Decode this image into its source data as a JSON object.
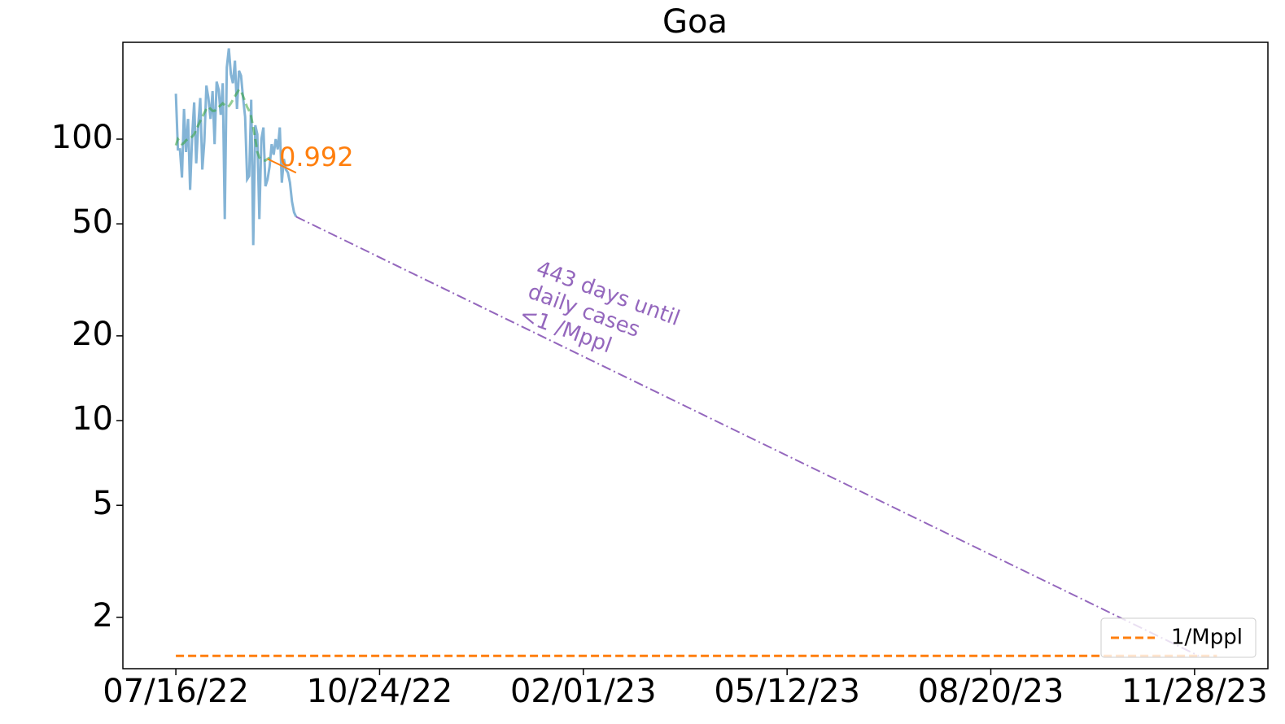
{
  "chart_data": {
    "type": "line",
    "title": "Goa",
    "log_y": true,
    "legend": "lower right",
    "x": [
      "2022-07-16",
      "2022-07-17",
      "2022-07-18",
      "2022-07-19",
      "2022-07-20",
      "2022-07-21",
      "2022-07-22",
      "2022-07-23",
      "2022-07-24",
      "2022-07-25",
      "2022-07-26",
      "2022-07-27",
      "2022-07-28",
      "2022-07-29",
      "2022-07-30",
      "2022-07-31",
      "2022-08-01",
      "2022-08-02",
      "2022-08-03",
      "2022-08-04",
      "2022-08-05",
      "2022-08-06",
      "2022-08-07",
      "2022-08-08",
      "2022-08-09",
      "2022-08-10",
      "2022-08-11",
      "2022-08-12",
      "2022-08-13",
      "2022-08-14",
      "2022-08-15",
      "2022-08-16",
      "2022-08-17",
      "2022-08-18",
      "2022-08-19",
      "2022-08-20",
      "2022-08-21",
      "2022-08-22",
      "2022-08-23",
      "2022-08-24",
      "2022-08-25",
      "2022-08-26",
      "2022-08-27",
      "2022-08-28",
      "2022-08-29",
      "2022-08-30",
      "2022-08-31",
      "2022-09-01",
      "2022-09-02",
      "2022-09-03",
      "2022-09-04",
      "2022-09-05",
      "2022-09-06",
      "2022-09-07",
      "2022-09-08",
      "2022-09-09",
      "2022-09-10",
      "2022-09-11",
      "2022-09-12",
      "2022-09-13"
    ],
    "series": [
      {
        "color": "#1f77b4",
        "opacity": 0.55,
        "style": "solid",
        "width": 3,
        "values": [
          145,
          92,
          92,
          73,
          128,
          90,
          118,
          66,
          102,
          135,
          82,
          112,
          140,
          78,
          98,
          155,
          140,
          118,
          148,
          96,
          160,
          150,
          122,
          158,
          52,
          180,
          210,
          170,
          158,
          190,
          128,
          175,
          168,
          140,
          120,
          72,
          74,
          138,
          42,
          112,
          104,
          52,
          100,
          110,
          68,
          72,
          80,
          96,
          88,
          100,
          92,
          110,
          70,
          85,
          78,
          76,
          70,
          60,
          55,
          53
        ]
      },
      {
        "color": "#2ca02c",
        "opacity": 0.5,
        "style": "dashed",
        "width": 3,
        "values": [
          95,
          100,
          98,
          96,
          97,
          99,
          100,
          101,
          102,
          104,
          108,
          112,
          116,
          120,
          124,
          128,
          130,
          128,
          126,
          126,
          128,
          130,
          132,
          134,
          132,
          130,
          131,
          134,
          138,
          142,
          146,
          150,
          148,
          142,
          136,
          130,
          126,
          120,
          110,
          100,
          90,
          86,
          85,
          84,
          84,
          85,
          86,
          null,
          null,
          null,
          null,
          null,
          null,
          null,
          null,
          null,
          null,
          null,
          null,
          null
        ]
      },
      {
        "color": "#ff7f0e",
        "opacity": 1,
        "style": "solid",
        "width": 2,
        "x": [
          "2022-08-30",
          "2022-09-13"
        ],
        "values": [
          85,
          76
        ]
      },
      {
        "color": "#9467bd",
        "opacity": 1,
        "style": "dashdot",
        "width": 2,
        "x": [
          "2022-09-13",
          "2023-11-30"
        ],
        "values": [
          53,
          1.46
        ]
      },
      {
        "name": "1/Mppl",
        "color": "#ff7f0e",
        "opacity": 1,
        "style": "dashed",
        "width": 3,
        "x": [
          "2022-07-16",
          "2023-12-09"
        ],
        "values": [
          1.46,
          1.46
        ]
      }
    ],
    "trend_label": "0.992",
    "projection_label": [
      "443 days until",
      "daily cases",
      "<1 /Mppl"
    ],
    "xlim": [
      "2022-06-20",
      "2024-01-03"
    ],
    "xticks": [
      {
        "value": "2022-07-16",
        "label": "07/16/22"
      },
      {
        "value": "2022-10-24",
        "label": "10/24/22"
      },
      {
        "value": "2023-02-01",
        "label": "02/01/23"
      },
      {
        "value": "2023-05-12",
        "label": "05/12/23"
      },
      {
        "value": "2023-08-20",
        "label": "08/20/23"
      },
      {
        "value": "2023-11-28",
        "label": "11/28/23"
      }
    ],
    "ylim": [
      1.314,
      220.8
    ],
    "yticks": [
      2,
      5,
      10,
      20,
      50,
      100
    ]
  }
}
